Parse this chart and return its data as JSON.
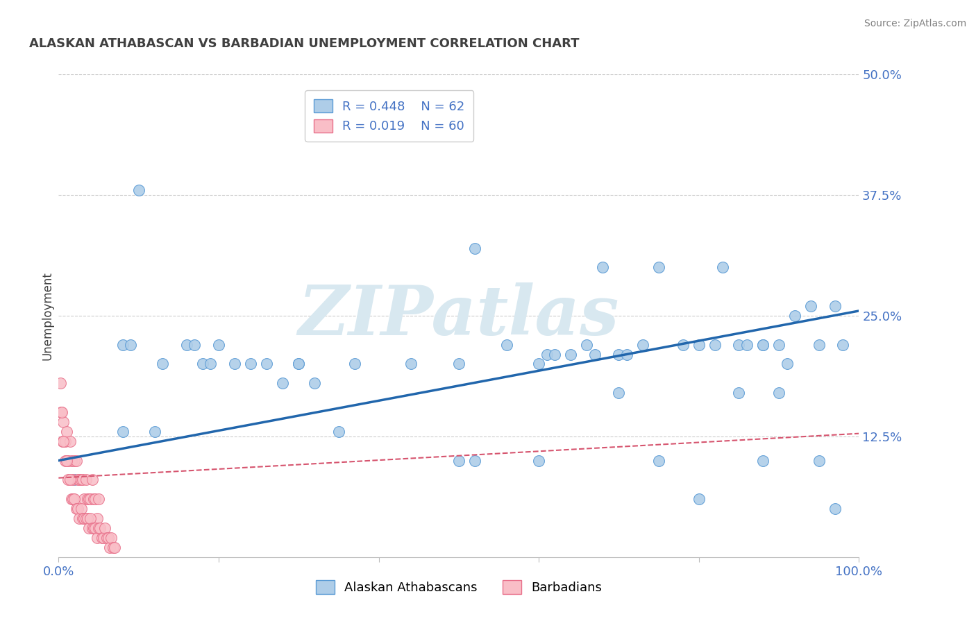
{
  "title": "ALASKAN ATHABASCAN VS BARBADIAN UNEMPLOYMENT CORRELATION CHART",
  "source_text": "Source: ZipAtlas.com",
  "ylabel": "Unemployment",
  "xlim": [
    0,
    1
  ],
  "ylim": [
    0,
    0.5
  ],
  "x_ticks": [
    0.0,
    0.2,
    0.4,
    0.6,
    0.8,
    1.0
  ],
  "x_tick_labels": [
    "0.0%",
    "",
    "",
    "",
    "",
    "100.0%"
  ],
  "y_ticks": [
    0.0,
    0.125,
    0.25,
    0.375,
    0.5
  ],
  "y_tick_labels": [
    "",
    "12.5%",
    "25.0%",
    "37.5%",
    "50.0%"
  ],
  "blue_color": "#aecde8",
  "blue_edge_color": "#5b9bd5",
  "blue_line_color": "#2166ac",
  "pink_color": "#f9bec7",
  "pink_edge_color": "#e8708a",
  "pink_line_color": "#d6546e",
  "text_color": "#4472c4",
  "axis_text_color": "#4472c4",
  "title_color": "#404040",
  "source_color": "#808080",
  "watermark_color": "#d8e8f0",
  "background_color": "#ffffff",
  "grid_color": "#cccccc",
  "blue_x": [
    0.02,
    0.1,
    0.08,
    0.09,
    0.13,
    0.18,
    0.19,
    0.22,
    0.26,
    0.3,
    0.3,
    0.32,
    0.37,
    0.44,
    0.5,
    0.52,
    0.56,
    0.6,
    0.61,
    0.62,
    0.64,
    0.66,
    0.67,
    0.68,
    0.7,
    0.71,
    0.73,
    0.75,
    0.78,
    0.8,
    0.82,
    0.83,
    0.85,
    0.86,
    0.88,
    0.88,
    0.9,
    0.91,
    0.92,
    0.94,
    0.95,
    0.97,
    0.98,
    0.08,
    0.12,
    0.16,
    0.17,
    0.2,
    0.24,
    0.28,
    0.35,
    0.5,
    0.52,
    0.6,
    0.7,
    0.75,
    0.8,
    0.85,
    0.88,
    0.9,
    0.95,
    0.97
  ],
  "blue_y": [
    0.08,
    0.38,
    0.22,
    0.22,
    0.2,
    0.2,
    0.2,
    0.2,
    0.2,
    0.2,
    0.2,
    0.18,
    0.2,
    0.2,
    0.2,
    0.32,
    0.22,
    0.2,
    0.21,
    0.21,
    0.21,
    0.22,
    0.21,
    0.3,
    0.21,
    0.21,
    0.22,
    0.3,
    0.22,
    0.22,
    0.22,
    0.3,
    0.22,
    0.22,
    0.22,
    0.22,
    0.22,
    0.2,
    0.25,
    0.26,
    0.22,
    0.26,
    0.22,
    0.13,
    0.13,
    0.22,
    0.22,
    0.22,
    0.2,
    0.18,
    0.13,
    0.1,
    0.1,
    0.1,
    0.17,
    0.1,
    0.06,
    0.17,
    0.1,
    0.17,
    0.1,
    0.05
  ],
  "pink_x": [
    0.003,
    0.005,
    0.006,
    0.008,
    0.01,
    0.012,
    0.014,
    0.016,
    0.018,
    0.02,
    0.022,
    0.024,
    0.026,
    0.028,
    0.03,
    0.032,
    0.034,
    0.036,
    0.038,
    0.04,
    0.042,
    0.044,
    0.046,
    0.048,
    0.05,
    0.002,
    0.004,
    0.006,
    0.008,
    0.01,
    0.012,
    0.014,
    0.016,
    0.018,
    0.02,
    0.022,
    0.024,
    0.026,
    0.028,
    0.03,
    0.032,
    0.034,
    0.036,
    0.038,
    0.04,
    0.042,
    0.044,
    0.046,
    0.048,
    0.05,
    0.052,
    0.054,
    0.056,
    0.058,
    0.06,
    0.062,
    0.064,
    0.066,
    0.068,
    0.07
  ],
  "pink_y": [
    0.15,
    0.12,
    0.14,
    0.12,
    0.13,
    0.1,
    0.12,
    0.1,
    0.08,
    0.1,
    0.1,
    0.08,
    0.08,
    0.08,
    0.08,
    0.06,
    0.08,
    0.06,
    0.06,
    0.06,
    0.08,
    0.06,
    0.06,
    0.04,
    0.06,
    0.18,
    0.15,
    0.12,
    0.1,
    0.1,
    0.08,
    0.08,
    0.06,
    0.06,
    0.06,
    0.05,
    0.05,
    0.04,
    0.05,
    0.04,
    0.04,
    0.04,
    0.04,
    0.03,
    0.04,
    0.03,
    0.03,
    0.03,
    0.02,
    0.03,
    0.03,
    0.02,
    0.02,
    0.03,
    0.02,
    0.02,
    0.01,
    0.02,
    0.01,
    0.01
  ],
  "blue_line_x0": 0.0,
  "blue_line_y0": 0.1,
  "blue_line_x1": 1.0,
  "blue_line_y1": 0.255,
  "pink_line_x0": 0.0,
  "pink_line_y0": 0.082,
  "pink_line_x1": 1.0,
  "pink_line_y1": 0.128
}
